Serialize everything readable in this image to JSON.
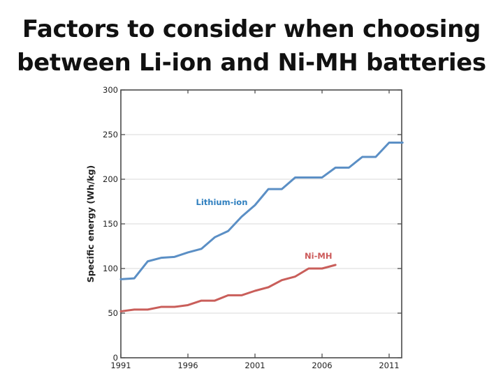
{
  "page": {
    "title_lines": [
      "Factors to consider when choosing",
      "between Li-ion and Ni-MH batteries"
    ]
  },
  "chart_data": {
    "type": "line",
    "title": "Factors to consider when choosing between Li-ion and Ni-MH batteries",
    "xlabel": "",
    "ylabel": "Specific energy (Wh/kg)",
    "xlim": [
      1991,
      2012
    ],
    "ylim": [
      0,
      300
    ],
    "xticks": [
      1991,
      1996,
      2001,
      2006,
      2011
    ],
    "yticks": [
      0,
      50,
      100,
      150,
      200,
      250,
      300
    ],
    "grid": "horizontal",
    "legend": "inline labels",
    "series": [
      {
        "name": "Lithium-ion",
        "color": "#5b8fc5",
        "label_color": "#2f7fbf",
        "x": [
          1991,
          1992,
          1993,
          1994,
          1995,
          1996,
          1997,
          1998,
          1999,
          2000,
          2001,
          2002,
          2003,
          2004,
          2005,
          2006,
          2007,
          2008,
          2009,
          2010,
          2011,
          2012
        ],
        "values": [
          88,
          89,
          108,
          112,
          113,
          118,
          122,
          135,
          142,
          158,
          171,
          189,
          189,
          202,
          202,
          202,
          213,
          213,
          225,
          225,
          241,
          241
        ]
      },
      {
        "name": "Ni-MH",
        "color": "#c95e5a",
        "label_color": "#cc5a5a",
        "x": [
          1991,
          1992,
          1993,
          1994,
          1995,
          1996,
          1997,
          1998,
          1999,
          2000,
          2001,
          2002,
          2003,
          2004,
          2005,
          2006,
          2007
        ],
        "values": [
          52,
          54,
          54,
          57,
          57,
          59,
          64,
          64,
          70,
          70,
          75,
          79,
          87,
          91,
          100,
          100,
          104
        ]
      }
    ]
  }
}
